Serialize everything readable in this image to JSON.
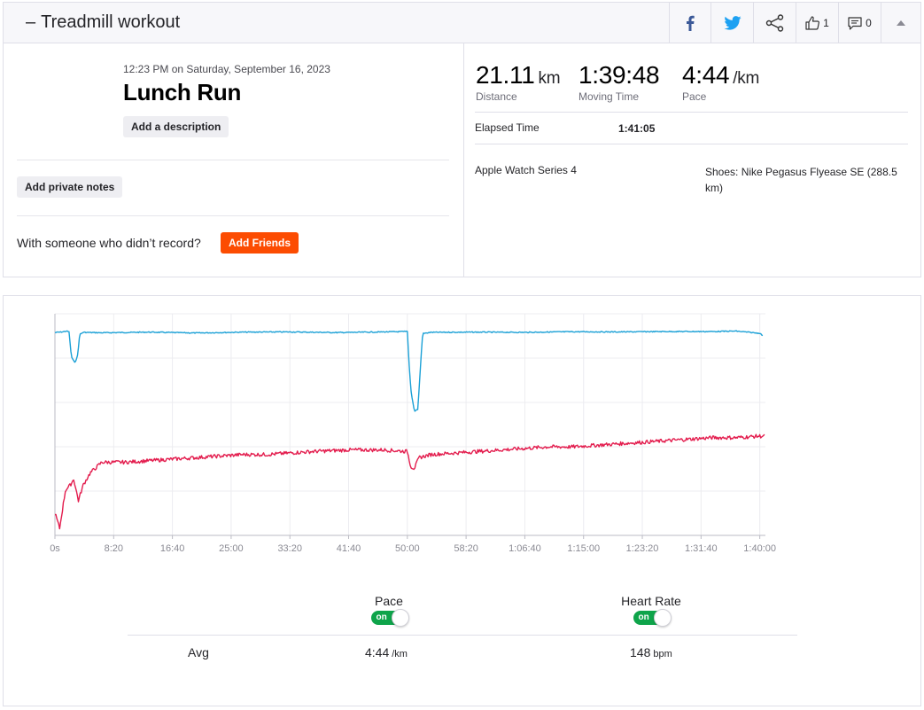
{
  "header": {
    "title": "Treadmill workout",
    "kudos_count": "1",
    "comment_count": "0"
  },
  "activity": {
    "datetime": "12:23 PM on Saturday, September 16, 2023",
    "name": "Lunch Run",
    "add_description": "Add a description",
    "add_private_notes": "Add private notes",
    "with_someone_text": "With someone who didn’t record?",
    "add_friends": "Add Friends"
  },
  "stats": {
    "distance": {
      "value": "21.11",
      "unit": "km",
      "label": "Distance"
    },
    "moving_time": {
      "value": "1:39:48",
      "label": "Moving Time"
    },
    "pace": {
      "value": "4:44",
      "unit": "/km",
      "label": "Pace"
    },
    "elapsed_time_label": "Elapsed Time",
    "elapsed_time": "1:41:05",
    "device": "Apple Watch Series 4",
    "shoes_line1": "Shoes: Nike Pegasus Flyease SE (288.5",
    "shoes_line2": "km)"
  },
  "chart_data": {
    "type": "line",
    "x_unit": "seconds",
    "xlim": [
      0,
      6048
    ],
    "x_ticks": [
      0,
      500,
      1000,
      1500,
      2000,
      2500,
      3000,
      3500,
      4000,
      4500,
      5000,
      5500,
      6000
    ],
    "x_tick_labels": [
      "0s",
      "8:20",
      "16:40",
      "25:00",
      "33:20",
      "41:40",
      "50:00",
      "58:20",
      "1:06:40",
      "1:15:00",
      "1:23:20",
      "1:31:40",
      "1:40:00"
    ],
    "grid": true,
    "series": [
      {
        "name": "Pace",
        "color": "#1aa0d6",
        "points": [
          [
            0,
            4.45
          ],
          [
            60,
            4.42
          ],
          [
            100,
            4.38
          ],
          [
            120,
            4.42
          ],
          [
            140,
            5.6
          ],
          [
            170,
            5.9
          ],
          [
            195,
            5.5
          ],
          [
            210,
            4.55
          ],
          [
            240,
            4.44
          ],
          [
            400,
            4.46
          ],
          [
            800,
            4.43
          ],
          [
            1200,
            4.47
          ],
          [
            1600,
            4.43
          ],
          [
            2000,
            4.42
          ],
          [
            2400,
            4.45
          ],
          [
            2800,
            4.42
          ],
          [
            3000,
            4.4
          ],
          [
            3010,
            5.5
          ],
          [
            3030,
            7.2
          ],
          [
            3060,
            8.2
          ],
          [
            3090,
            8.1
          ],
          [
            3110,
            6.2
          ],
          [
            3130,
            4.5
          ],
          [
            3200,
            4.44
          ],
          [
            3600,
            4.43
          ],
          [
            4000,
            4.44
          ],
          [
            4400,
            4.41
          ],
          [
            4800,
            4.42
          ],
          [
            5200,
            4.4
          ],
          [
            5600,
            4.4
          ],
          [
            5800,
            4.38
          ],
          [
            5950,
            4.46
          ],
          [
            6000,
            4.48
          ],
          [
            6030,
            4.62
          ]
        ]
      },
      {
        "name": "Heart Rate",
        "color": "#e31c4d",
        "points": [
          [
            0,
            110
          ],
          [
            40,
            100
          ],
          [
            90,
            125
          ],
          [
            130,
            128
          ],
          [
            160,
            132
          ],
          [
            200,
            118
          ],
          [
            240,
            128
          ],
          [
            300,
            136
          ],
          [
            400,
            143
          ],
          [
            600,
            143
          ],
          [
            800,
            144
          ],
          [
            1000,
            145
          ],
          [
            1200,
            146
          ],
          [
            1400,
            147
          ],
          [
            1600,
            148
          ],
          [
            1800,
            148
          ],
          [
            2000,
            149
          ],
          [
            2200,
            150
          ],
          [
            2500,
            151
          ],
          [
            2800,
            151
          ],
          [
            3000,
            150
          ],
          [
            3030,
            140
          ],
          [
            3060,
            139
          ],
          [
            3100,
            146
          ],
          [
            3200,
            148
          ],
          [
            3400,
            149
          ],
          [
            3600,
            150
          ],
          [
            3800,
            151
          ],
          [
            4000,
            152
          ],
          [
            4200,
            153
          ],
          [
            4400,
            153
          ],
          [
            4600,
            154
          ],
          [
            4800,
            155
          ],
          [
            5000,
            156
          ],
          [
            5200,
            157
          ],
          [
            5400,
            158
          ],
          [
            5600,
            159
          ],
          [
            5800,
            159
          ],
          [
            6000,
            160
          ],
          [
            6040,
            160
          ]
        ]
      }
    ]
  },
  "toggles": {
    "pace": {
      "label": "Pace",
      "state": "on"
    },
    "heart_rate": {
      "label": "Heart Rate",
      "state": "on"
    }
  },
  "averages": {
    "label": "Avg",
    "pace_value": "4:44",
    "pace_unit": "/km",
    "hr_value": "148",
    "hr_unit": "bpm"
  }
}
